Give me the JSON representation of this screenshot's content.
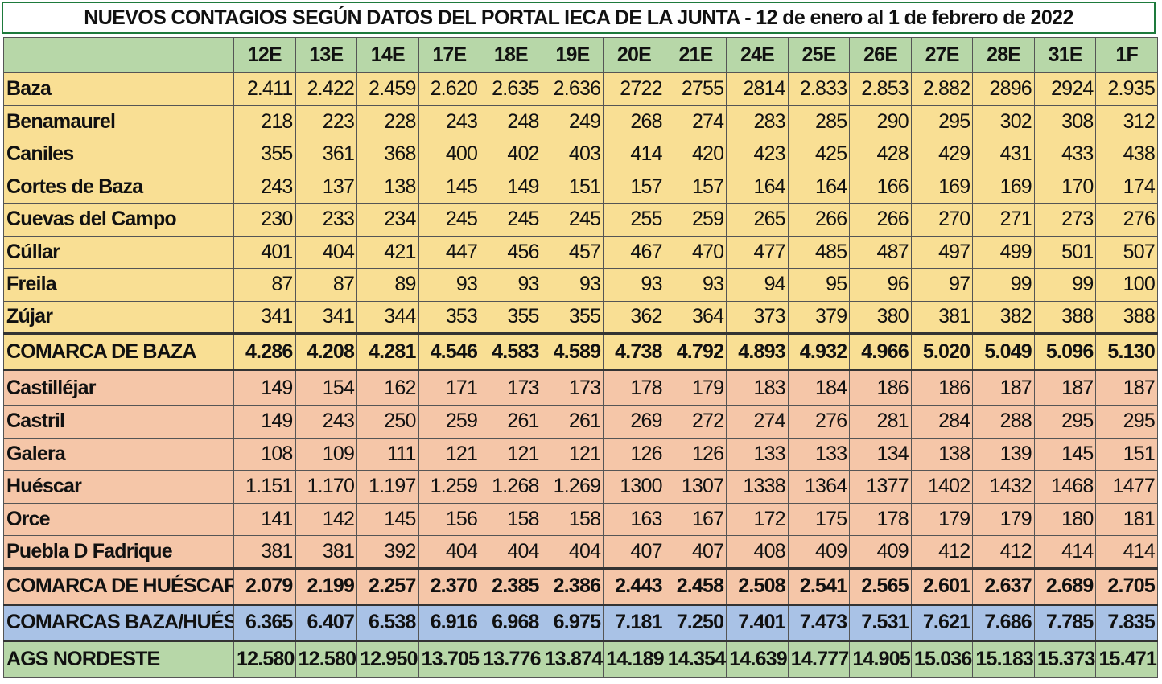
{
  "title": "NUEVOS CONTAGIOS  SEGÚN DATOS DEL PORTAL IECA DE LA JUNTA - 12 de enero al 1 de febrero de 2022",
  "colors": {
    "header_green": "#b7d7a8",
    "baza_yellow": "#f9df94",
    "huescar_salmon": "#f5c6a8",
    "combined_blue": "#a9c2e6",
    "nordeste_green": "#b7d7a8"
  },
  "chart_data": {
    "type": "table",
    "title": "NUEVOS CONTAGIOS  SEGÚN DATOS DEL PORTAL IECA DE LA JUNTA - 12 de enero al 1 de febrero de 2022",
    "columns": [
      "12E",
      "13E",
      "14E",
      "17E",
      "18E",
      "19E",
      "20E",
      "21E",
      "24E",
      "25E",
      "26E",
      "27E",
      "28E",
      "31E",
      "1F"
    ],
    "rows": [
      {
        "name": "Baza",
        "group": "yel",
        "values": [
          "2.411",
          "2.422",
          "2.459",
          "2.620",
          "2.635",
          "2.636",
          "2722",
          "2755",
          "2814",
          "2.833",
          "2.853",
          "2.882",
          "2896",
          "2924",
          "2.935"
        ]
      },
      {
        "name": "Benamaurel",
        "group": "yel",
        "values": [
          "218",
          "223",
          "228",
          "243",
          "248",
          "249",
          "268",
          "274",
          "283",
          "285",
          "290",
          "295",
          "302",
          "308",
          "312"
        ]
      },
      {
        "name": "Caniles",
        "group": "yel",
        "values": [
          "355",
          "361",
          "368",
          "400",
          "402",
          "403",
          "414",
          "420",
          "423",
          "425",
          "428",
          "429",
          "431",
          "433",
          "438"
        ]
      },
      {
        "name": "Cortes de Baza",
        "group": "yel",
        "values": [
          "243",
          "137",
          "138",
          "145",
          "149",
          "151",
          "157",
          "157",
          "164",
          "164",
          "166",
          "169",
          "169",
          "170",
          "174"
        ]
      },
      {
        "name": "Cuevas del Campo",
        "group": "yel",
        "values": [
          "230",
          "233",
          "234",
          "245",
          "245",
          "245",
          "255",
          "259",
          "265",
          "266",
          "266",
          "270",
          "271",
          "273",
          "276"
        ]
      },
      {
        "name": "Cúllar",
        "group": "yel",
        "values": [
          "401",
          "404",
          "421",
          "447",
          "456",
          "457",
          "467",
          "470",
          "477",
          "485",
          "487",
          "497",
          "499",
          "501",
          "507"
        ]
      },
      {
        "name": "Freila",
        "group": "yel",
        "values": [
          "87",
          "87",
          "89",
          "93",
          "93",
          "93",
          "93",
          "93",
          "94",
          "95",
          "96",
          "97",
          "99",
          "99",
          "100"
        ]
      },
      {
        "name": "Zújar",
        "group": "yel",
        "values": [
          "341",
          "341",
          "344",
          "353",
          "355",
          "355",
          "362",
          "364",
          "373",
          "379",
          "380",
          "381",
          "382",
          "388",
          "388"
        ]
      },
      {
        "name": "COMARCA DE BAZA",
        "group": "yel tot bold",
        "values": [
          "4.286",
          "4.208",
          "4.281",
          "4.546",
          "4.583",
          "4.589",
          "4.738",
          "4.792",
          "4.893",
          "4.932",
          "4.966",
          "5.020",
          "5.049",
          "5.096",
          "5.130"
        ]
      },
      {
        "name": "Castilléjar",
        "group": "sal first",
        "values": [
          "149",
          "154",
          "162",
          "171",
          "173",
          "173",
          "178",
          "179",
          "183",
          "184",
          "186",
          "186",
          "187",
          "187",
          "187"
        ]
      },
      {
        "name": "Castril",
        "group": "sal",
        "values": [
          "149",
          "243",
          "250",
          "259",
          "261",
          "261",
          "269",
          "272",
          "274",
          "276",
          "281",
          "284",
          "288",
          "295",
          "295"
        ]
      },
      {
        "name": "Galera",
        "group": "sal",
        "values": [
          "108",
          "109",
          "111",
          "121",
          "121",
          "121",
          "126",
          "126",
          "133",
          "133",
          "134",
          "138",
          "139",
          "145",
          "151"
        ]
      },
      {
        "name": "Huéscar",
        "group": "sal",
        "values": [
          "1.151",
          "1.170",
          "1.197",
          "1.259",
          "1.268",
          "1.269",
          "1300",
          "1307",
          "1338",
          "1364",
          "1377",
          "1402",
          "1432",
          "1468",
          "1477"
        ]
      },
      {
        "name": "Orce",
        "group": "sal",
        "values": [
          "141",
          "142",
          "145",
          "156",
          "158",
          "158",
          "163",
          "167",
          "172",
          "175",
          "178",
          "179",
          "179",
          "180",
          "181"
        ]
      },
      {
        "name": "Puebla D Fadrique",
        "group": "sal",
        "values": [
          "381",
          "381",
          "392",
          "404",
          "404",
          "404",
          "407",
          "407",
          "408",
          "409",
          "409",
          "412",
          "412",
          "414",
          "414"
        ]
      },
      {
        "name": "COMARCA DE HUÉSCAR",
        "group": "sal tot bold",
        "values": [
          "2.079",
          "2.199",
          "2.257",
          "2.370",
          "2.385",
          "2.386",
          "2.443",
          "2.458",
          "2.508",
          "2.541",
          "2.565",
          "2.601",
          "2.637",
          "2.689",
          "2.705"
        ]
      },
      {
        "name": "COMARCAS BAZA/HUÉSCAR",
        "group": "blu bold",
        "values": [
          "6.365",
          "6.407",
          "6.538",
          "6.916",
          "6.968",
          "6.975",
          "7.181",
          "7.250",
          "7.401",
          "7.473",
          "7.531",
          "7.621",
          "7.686",
          "7.785",
          "7.835"
        ]
      },
      {
        "name": "AGS NORDESTE",
        "group": "grn bold",
        "values": [
          "12.580",
          "12.580",
          "12.950",
          "13.705",
          "13.776",
          "13.874",
          "14.189",
          "14.354",
          "14.639",
          "14.777",
          "14.905",
          "15.036",
          "15.183",
          "15.373",
          "15.471"
        ]
      }
    ]
  }
}
